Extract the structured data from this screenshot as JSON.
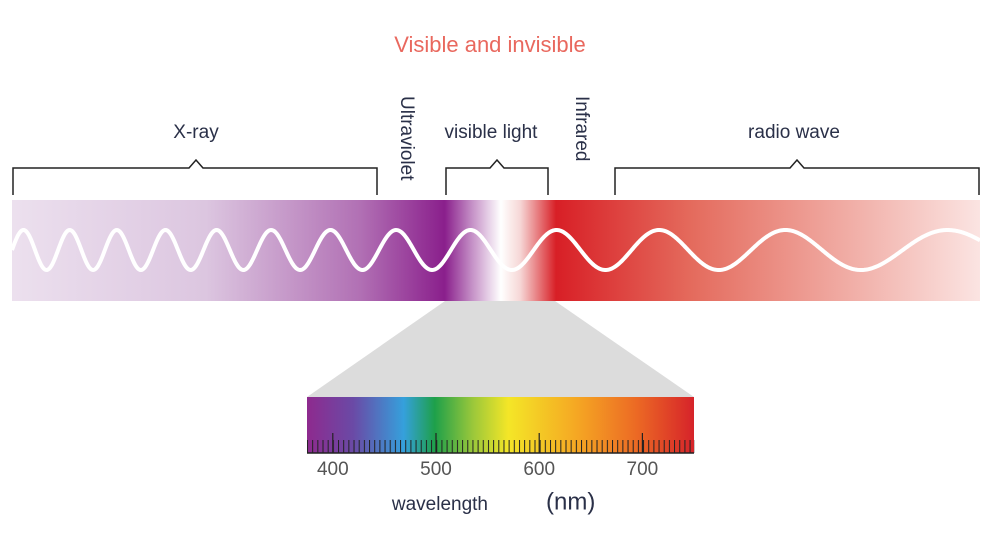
{
  "title": "Visible and invisible",
  "bands": [
    {
      "label": "X-ray"
    },
    {
      "label": "Ultraviolet"
    },
    {
      "label": "visible light"
    },
    {
      "label": "Infrared"
    },
    {
      "label": "radio wave"
    }
  ],
  "spectrum": {
    "xlim": [
      375,
      750
    ],
    "xticks": [
      400,
      500,
      600,
      700
    ],
    "xlabel": "wavelength",
    "unit": "(nm)"
  }
}
